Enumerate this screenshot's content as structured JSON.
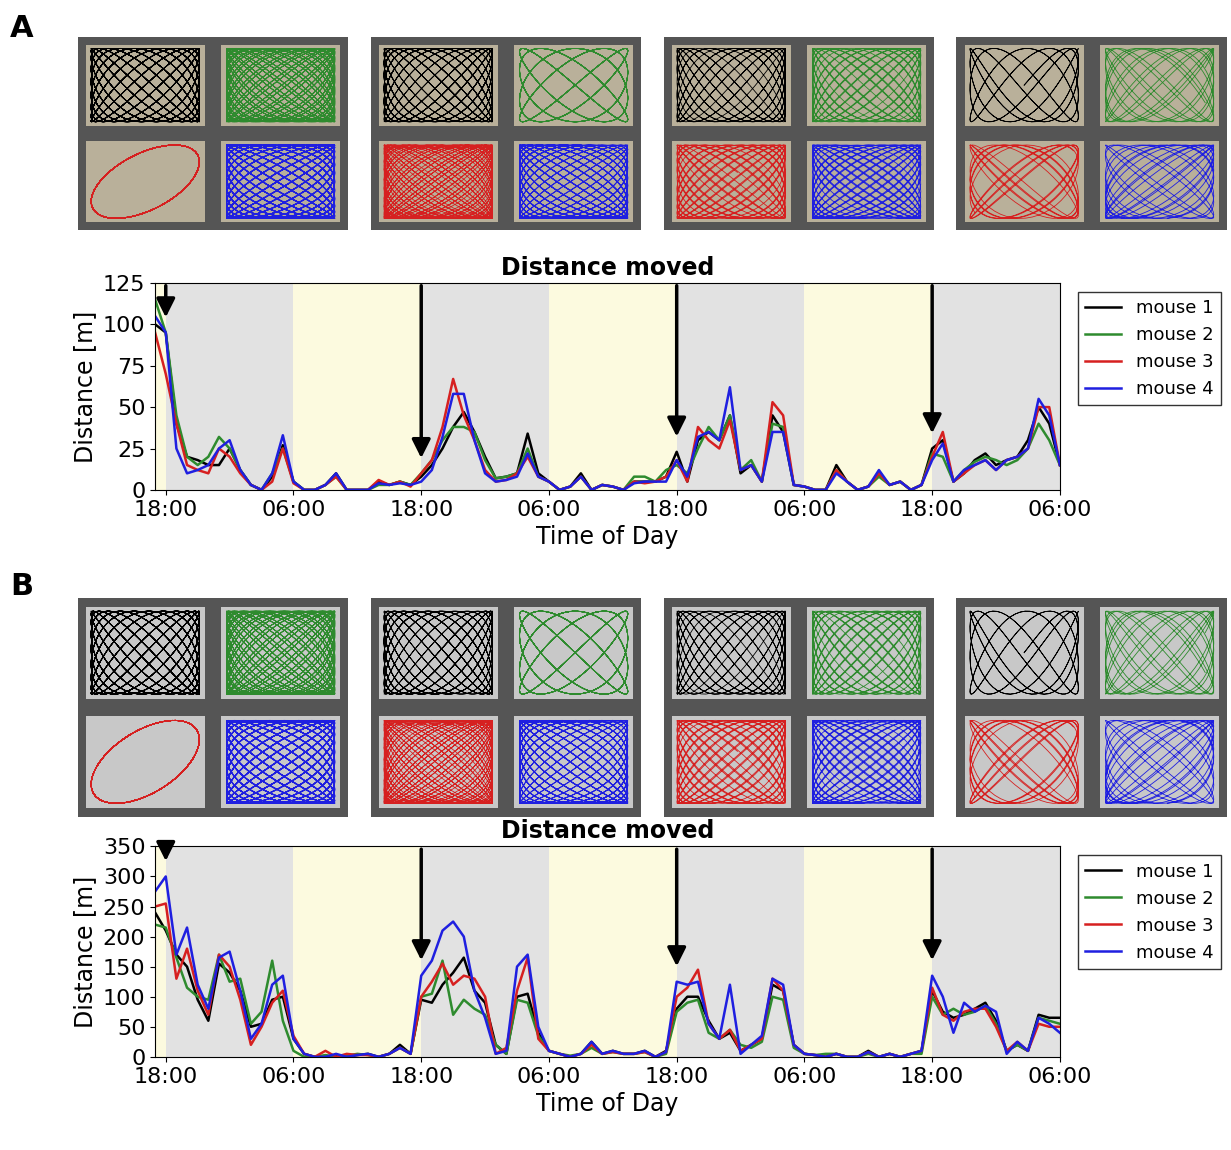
{
  "chart_data": [
    {
      "panel": "A",
      "type": "line",
      "title": "Distance moved",
      "x_label": "Time of Day",
      "y_label": "Distance [m]",
      "xlim": [
        -1,
        84
      ],
      "ylim": [
        0,
        125
      ],
      "xticks": [
        {
          "value": 0,
          "label": "18:00"
        },
        {
          "value": 12,
          "label": "06:00"
        },
        {
          "value": 24,
          "label": "18:00"
        },
        {
          "value": 36,
          "label": "06:00"
        },
        {
          "value": 48,
          "label": "18:00"
        },
        {
          "value": 60,
          "label": "06:00"
        },
        {
          "value": 72,
          "label": "18:00"
        },
        {
          "value": 84,
          "label": "06:00"
        }
      ],
      "yticks": [
        0,
        25,
        50,
        75,
        100,
        125
      ],
      "legend": "upper right",
      "light_periods": [
        [
          -1,
          0
        ],
        [
          12,
          24
        ],
        [
          36,
          48
        ],
        [
          60,
          72
        ]
      ],
      "arrows": [
        0,
        24,
        48,
        72
      ],
      "x": [
        -1,
        0,
        1,
        2,
        3,
        4,
        5,
        6,
        7,
        8,
        9,
        10,
        11,
        12,
        13,
        14,
        15,
        16,
        17,
        18,
        19,
        20,
        21,
        22,
        23,
        24,
        25,
        26,
        27,
        28,
        29,
        30,
        31,
        32,
        33,
        34,
        35,
        36,
        37,
        38,
        39,
        40,
        41,
        42,
        43,
        44,
        45,
        46,
        47,
        48,
        49,
        50,
        51,
        52,
        53,
        54,
        55,
        56,
        57,
        58,
        59,
        60,
        61,
        62,
        63,
        64,
        65,
        66,
        67,
        68,
        69,
        70,
        71,
        72,
        73,
        74,
        75,
        76,
        77,
        78,
        79,
        80,
        81,
        82,
        83,
        84
      ],
      "series": [
        {
          "name": "mouse 1",
          "color": "#000000",
          "values": [
            100,
            95,
            40,
            20,
            18,
            15,
            15,
            25,
            12,
            3,
            0,
            8,
            27,
            5,
            0,
            0,
            3,
            10,
            0,
            0,
            0,
            5,
            3,
            5,
            3,
            8,
            15,
            25,
            38,
            47,
            35,
            20,
            7,
            8,
            10,
            34,
            10,
            5,
            0,
            2,
            10,
            0,
            3,
            2,
            0,
            5,
            5,
            5,
            8,
            23,
            5,
            30,
            35,
            30,
            45,
            10,
            15,
            5,
            45,
            35,
            3,
            2,
            0,
            0,
            15,
            5,
            0,
            2,
            10,
            3,
            5,
            0,
            3,
            25,
            30,
            5,
            10,
            18,
            22,
            15,
            18,
            20,
            30,
            50,
            40,
            15
          ]
        },
        {
          "name": "mouse 2",
          "color": "#2e8b2e",
          "values": [
            115,
            95,
            45,
            20,
            15,
            20,
            32,
            25,
            12,
            3,
            0,
            10,
            25,
            5,
            0,
            0,
            3,
            8,
            0,
            0,
            0,
            3,
            3,
            5,
            3,
            10,
            18,
            30,
            38,
            38,
            35,
            18,
            7,
            8,
            10,
            25,
            8,
            5,
            0,
            2,
            8,
            0,
            3,
            2,
            0,
            8,
            8,
            5,
            12,
            15,
            10,
            25,
            38,
            30,
            45,
            12,
            18,
            5,
            40,
            38,
            3,
            2,
            0,
            0,
            12,
            5,
            0,
            2,
            8,
            3,
            5,
            0,
            3,
            22,
            20,
            5,
            12,
            17,
            20,
            18,
            15,
            18,
            25,
            40,
            30,
            15
          ]
        },
        {
          "name": "mouse 3",
          "color": "#d62020",
          "values": [
            95,
            70,
            40,
            15,
            12,
            10,
            25,
            20,
            10,
            3,
            0,
            5,
            25,
            4,
            0,
            0,
            3,
            8,
            0,
            0,
            0,
            6,
            3,
            5,
            2,
            10,
            18,
            38,
            67,
            45,
            30,
            12,
            5,
            6,
            10,
            20,
            8,
            5,
            0,
            2,
            8,
            0,
            3,
            2,
            0,
            5,
            4,
            5,
            8,
            18,
            5,
            38,
            30,
            25,
            42,
            12,
            15,
            5,
            53,
            45,
            3,
            2,
            0,
            0,
            12,
            5,
            0,
            2,
            10,
            3,
            5,
            0,
            3,
            20,
            35,
            5,
            10,
            15,
            18,
            12,
            18,
            20,
            25,
            50,
            50,
            15
          ]
        },
        {
          "name": "mouse 4",
          "color": "#1f1fe0",
          "values": [
            105,
            95,
            25,
            10,
            12,
            15,
            25,
            30,
            12,
            3,
            0,
            10,
            33,
            5,
            0,
            0,
            3,
            10,
            0,
            0,
            0,
            4,
            3,
            4,
            3,
            5,
            12,
            32,
            58,
            58,
            30,
            10,
            5,
            6,
            8,
            22,
            8,
            5,
            0,
            2,
            8,
            0,
            3,
            2,
            0,
            4,
            5,
            5,
            5,
            18,
            8,
            32,
            35,
            30,
            62,
            12,
            15,
            5,
            35,
            35,
            3,
            2,
            0,
            0,
            10,
            5,
            0,
            2,
            12,
            3,
            5,
            0,
            3,
            18,
            28,
            5,
            12,
            15,
            18,
            12,
            18,
            20,
            25,
            55,
            45,
            15
          ]
        }
      ]
    },
    {
      "panel": "B",
      "type": "line",
      "title": "Distance moved",
      "x_label": "Time of Day",
      "y_label": "Distance [m]",
      "xlim": [
        -1,
        84
      ],
      "ylim": [
        0,
        350
      ],
      "xticks": [
        {
          "value": 0,
          "label": "18:00"
        },
        {
          "value": 12,
          "label": "06:00"
        },
        {
          "value": 24,
          "label": "18:00"
        },
        {
          "value": 36,
          "label": "06:00"
        },
        {
          "value": 48,
          "label": "18:00"
        },
        {
          "value": 60,
          "label": "06:00"
        },
        {
          "value": 72,
          "label": "18:00"
        },
        {
          "value": 84,
          "label": "06:00"
        }
      ],
      "yticks": [
        0,
        50,
        100,
        150,
        200,
        250,
        300,
        350
      ],
      "legend": "upper right",
      "light_periods": [
        [
          -1,
          0
        ],
        [
          12,
          24
        ],
        [
          36,
          48
        ],
        [
          60,
          72
        ]
      ],
      "arrows": [
        0,
        24,
        48,
        72
      ],
      "x": [
        -1,
        0,
        1,
        2,
        3,
        4,
        5,
        6,
        7,
        8,
        9,
        10,
        11,
        12,
        13,
        14,
        15,
        16,
        17,
        18,
        19,
        20,
        21,
        22,
        23,
        24,
        25,
        26,
        27,
        28,
        29,
        30,
        31,
        32,
        33,
        34,
        35,
        36,
        37,
        38,
        39,
        40,
        41,
        42,
        43,
        44,
        45,
        46,
        47,
        48,
        49,
        50,
        51,
        52,
        53,
        54,
        55,
        56,
        57,
        58,
        59,
        60,
        61,
        62,
        63,
        64,
        65,
        66,
        67,
        68,
        69,
        70,
        71,
        72,
        73,
        74,
        75,
        76,
        77,
        78,
        79,
        80,
        81,
        82,
        83,
        84
      ],
      "series": [
        {
          "name": "mouse 1",
          "color": "#000000",
          "values": [
            240,
            210,
            170,
            150,
            95,
            60,
            155,
            140,
            110,
            50,
            55,
            95,
            100,
            30,
            5,
            0,
            0,
            3,
            0,
            3,
            5,
            0,
            5,
            20,
            5,
            95,
            90,
            120,
            140,
            165,
            110,
            90,
            20,
            5,
            100,
            105,
            40,
            10,
            5,
            0,
            5,
            25,
            5,
            10,
            5,
            5,
            10,
            0,
            10,
            80,
            100,
            100,
            60,
            30,
            40,
            10,
            20,
            30,
            120,
            110,
            20,
            5,
            3,
            0,
            5,
            0,
            0,
            10,
            0,
            5,
            0,
            5,
            10,
            110,
            75,
            65,
            70,
            80,
            90,
            60,
            10,
            20,
            10,
            70,
            65,
            65
          ]
        },
        {
          "name": "mouse 2",
          "color": "#2e8b2e",
          "values": [
            220,
            215,
            165,
            115,
            100,
            95,
            170,
            125,
            130,
            55,
            75,
            160,
            60,
            10,
            0,
            0,
            3,
            0,
            2,
            5,
            3,
            0,
            5,
            15,
            5,
            100,
            105,
            160,
            70,
            95,
            80,
            70,
            20,
            5,
            95,
            90,
            35,
            10,
            5,
            2,
            5,
            15,
            5,
            8,
            5,
            5,
            8,
            0,
            5,
            75,
            90,
            95,
            40,
            30,
            45,
            20,
            15,
            25,
            100,
            95,
            15,
            5,
            3,
            5,
            5,
            0,
            0,
            5,
            0,
            5,
            0,
            5,
            5,
            100,
            70,
            80,
            70,
            75,
            85,
            55,
            10,
            20,
            10,
            65,
            60,
            55
          ]
        },
        {
          "name": "mouse 3",
          "color": "#d62020",
          "values": [
            250,
            255,
            130,
            180,
            110,
            70,
            170,
            150,
            95,
            20,
            50,
            90,
            110,
            35,
            5,
            0,
            10,
            0,
            5,
            3,
            3,
            0,
            5,
            15,
            5,
            100,
            125,
            155,
            120,
            135,
            130,
            100,
            5,
            15,
            110,
            165,
            30,
            10,
            5,
            0,
            5,
            20,
            5,
            8,
            5,
            5,
            8,
            0,
            8,
            100,
            115,
            145,
            55,
            30,
            45,
            10,
            20,
            30,
            130,
            110,
            20,
            5,
            3,
            0,
            5,
            0,
            0,
            8,
            0,
            5,
            0,
            5,
            10,
            115,
            70,
            60,
            75,
            80,
            80,
            50,
            10,
            25,
            10,
            55,
            50,
            50
          ]
        },
        {
          "name": "mouse 4",
          "color": "#1f1fe0",
          "values": [
            275,
            300,
            170,
            215,
            120,
            80,
            165,
            175,
            110,
            30,
            55,
            120,
            135,
            30,
            5,
            0,
            0,
            5,
            0,
            3,
            5,
            0,
            5,
            15,
            5,
            135,
            160,
            210,
            225,
            200,
            110,
            65,
            5,
            10,
            150,
            170,
            50,
            10,
            5,
            0,
            5,
            25,
            5,
            10,
            5,
            5,
            10,
            0,
            8,
            125,
            120,
            125,
            55,
            30,
            120,
            5,
            20,
            35,
            130,
            120,
            20,
            5,
            3,
            0,
            5,
            0,
            0,
            8,
            0,
            5,
            0,
            5,
            10,
            135,
            100,
            40,
            90,
            75,
            85,
            75,
            5,
            25,
            10,
            65,
            55,
            40
          ]
        }
      ]
    }
  ]
}
